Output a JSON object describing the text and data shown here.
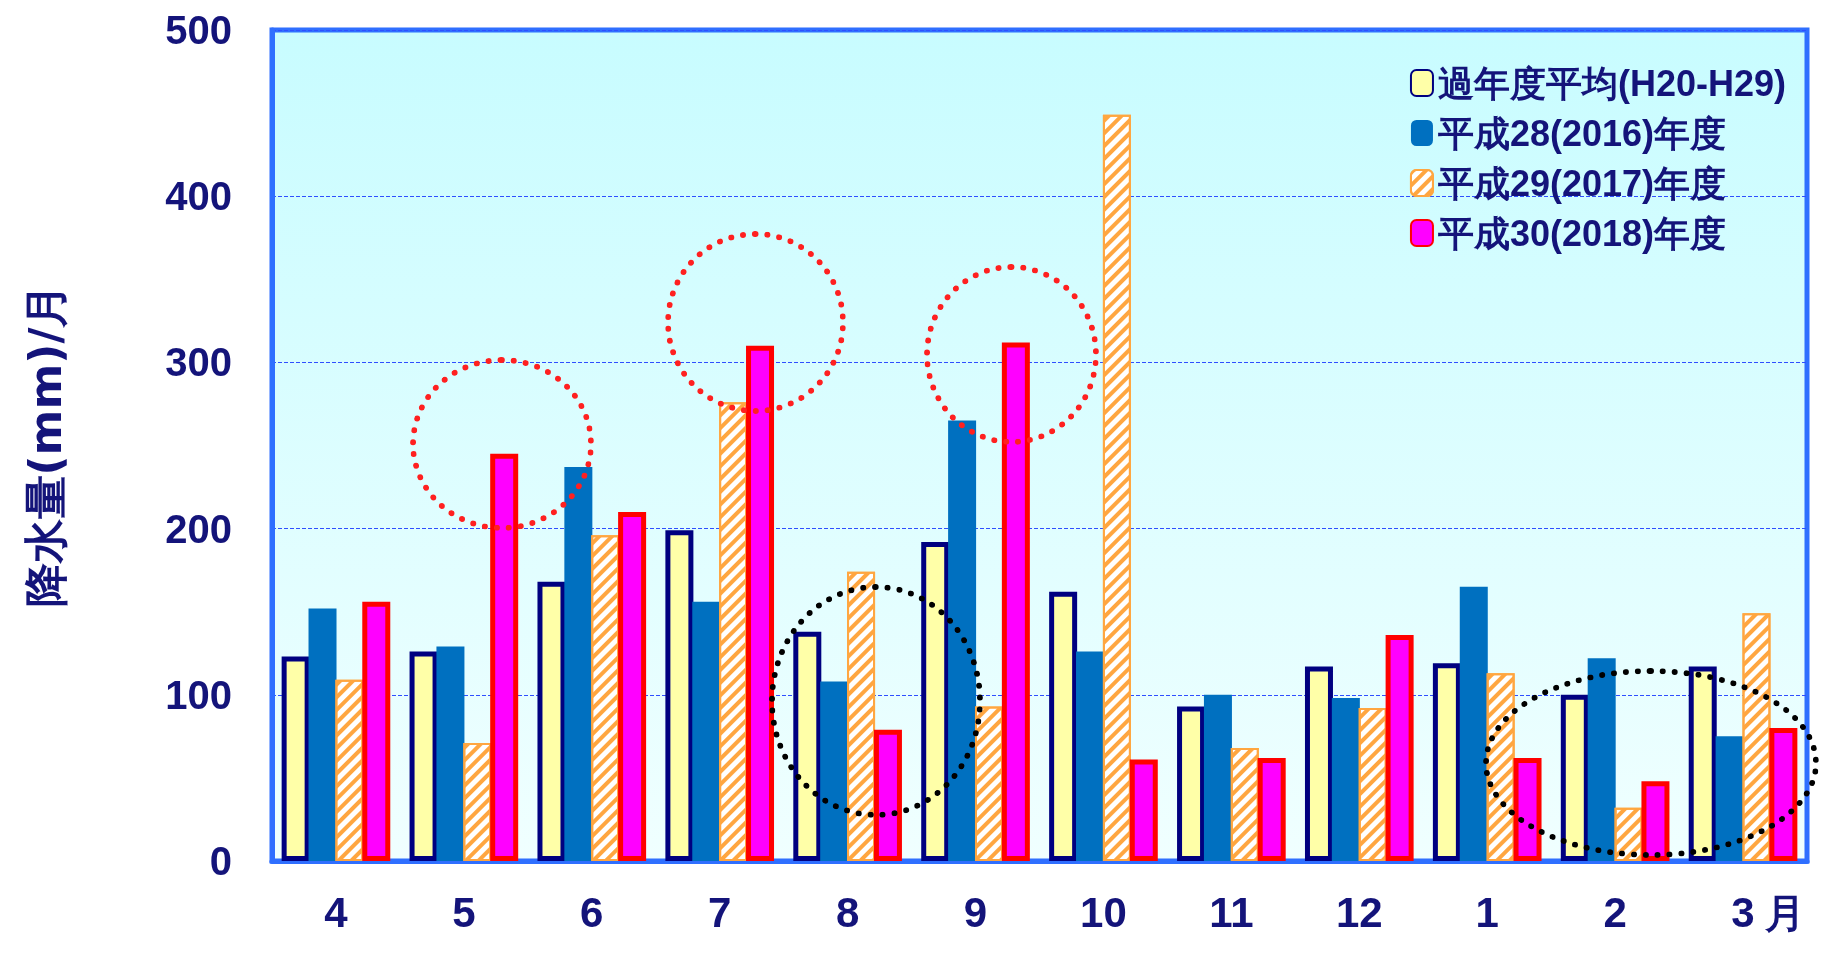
{
  "chart_data": {
    "type": "bar",
    "xlabel": "月",
    "ylabel": "降水量(mm)/月",
    "categories": [
      "4",
      "5",
      "6",
      "7",
      "8",
      "9",
      "10",
      "11",
      "12",
      "1",
      "2",
      "3"
    ],
    "series": [
      {
        "name": "過年度平均(H20-H29)",
        "color": "#ffffa8",
        "values": [
          123,
          126,
          168,
          199,
          138,
          192,
          162,
          93,
          117,
          119,
          100,
          117
        ]
      },
      {
        "name": "平成28(2016)年度",
        "color": "#0070c0",
        "values": [
          152,
          129,
          237,
          156,
          108,
          265,
          126,
          100,
          98,
          165,
          122,
          75
        ]
      },
      {
        "name": "平成29(2017)年度",
        "color": "#ffa640",
        "values": [
          109,
          71,
          196,
          276,
          174,
          93,
          449,
          68,
          92,
          113,
          32,
          149
        ]
      },
      {
        "name": "平成30(2018)年度",
        "color": "#ff00ff",
        "values": [
          156,
          245,
          210,
          310,
          79,
          312,
          61,
          62,
          136,
          62,
          48,
          80
        ]
      }
    ],
    "ylim": [
      0,
      500
    ],
    "yticks": [
      0,
      100,
      200,
      300,
      400,
      500
    ],
    "grid": "y",
    "legend": "top right"
  }
}
